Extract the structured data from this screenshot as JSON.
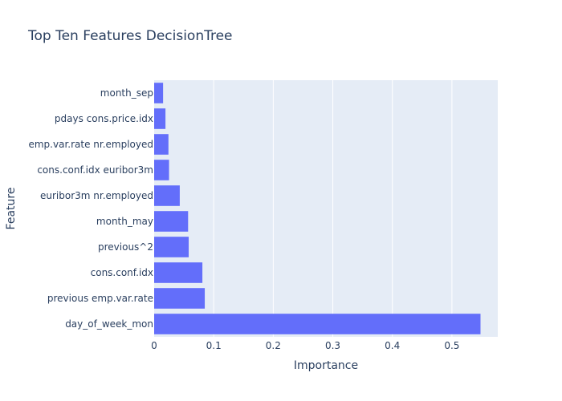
{
  "chart_data": {
    "type": "bar",
    "orientation": "horizontal",
    "title": "Top Ten Features DecisionTree",
    "xlabel": "Importance",
    "ylabel": "Feature",
    "categories": [
      "day_of_week_mon",
      "previous emp.var.rate",
      "cons.conf.idx",
      "previous^2",
      "month_may",
      "euribor3m nr.employed",
      "cons.conf.idx euribor3m",
      "emp.var.rate nr.employed",
      "pdays cons.price.idx",
      "month_sep"
    ],
    "values": [
      0.548,
      0.085,
      0.081,
      0.058,
      0.057,
      0.043,
      0.025,
      0.024,
      0.019,
      0.015
    ],
    "xlim": [
      0,
      0.577
    ],
    "xticks": [
      0,
      0.1,
      0.2,
      0.3,
      0.4,
      0.5
    ],
    "xtick_labels": [
      "0",
      "0.1",
      "0.2",
      "0.3",
      "0.4",
      "0.5"
    ],
    "grid": true,
    "legend": "none",
    "colors": {
      "bar": "#636efa",
      "plot_background": "#e5ecf6",
      "grid": "#ffffff",
      "text": "#2a3f5f"
    }
  }
}
